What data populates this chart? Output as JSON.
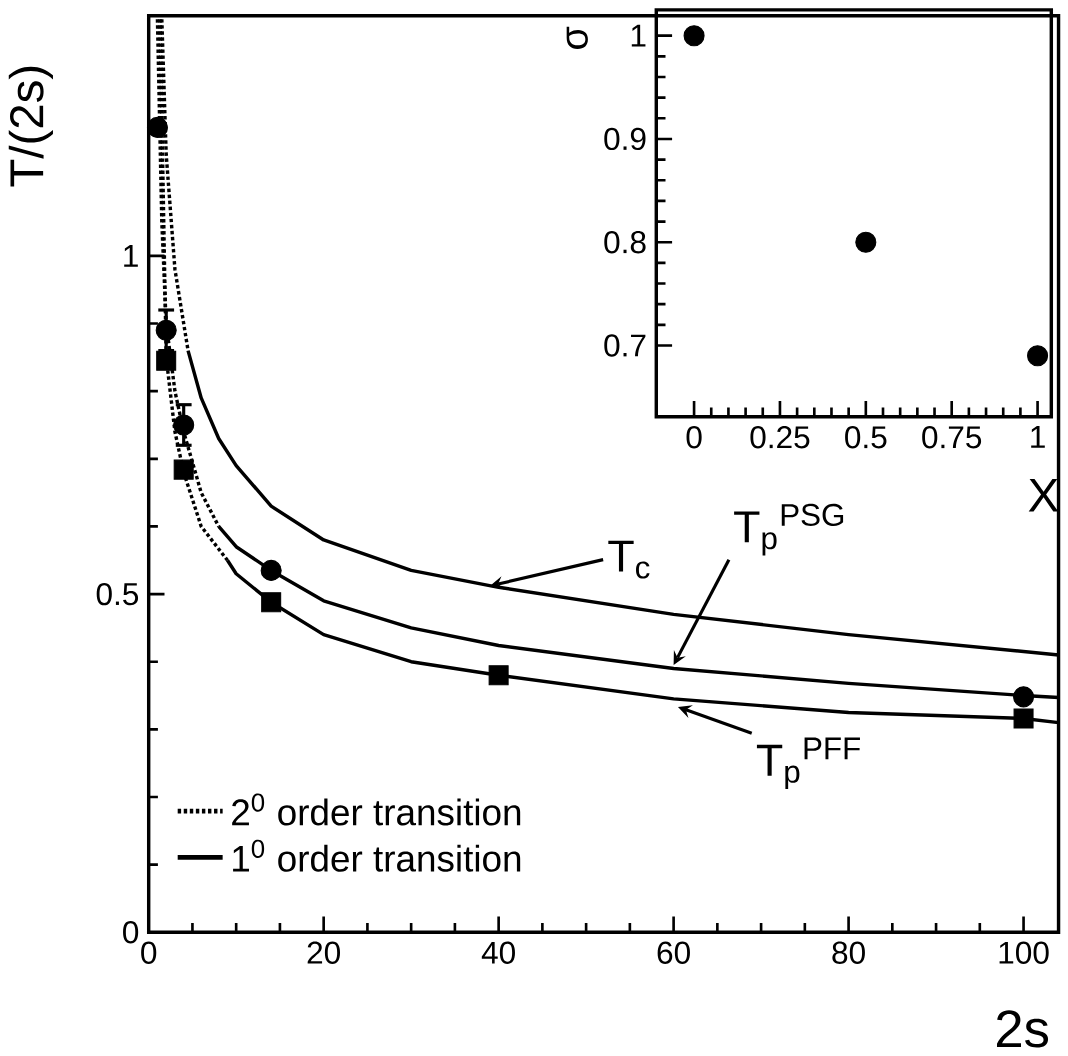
{
  "chart_data": [
    {
      "type": "line",
      "xlabel": "2s",
      "ylabel": "T/(2s)",
      "xlim": [
        0,
        104
      ],
      "ylim": [
        0,
        1.355
      ],
      "xticks": [
        0,
        20,
        40,
        60,
        80,
        100
      ],
      "yticks": [
        0,
        0.5,
        1
      ],
      "legend": "bottom left",
      "series": [
        {
          "name": "2$^{0}$ order transition",
          "type": "line",
          "line_style": "dotted",
          "color": "#000000",
          "x": [
            1.5,
            2,
            3,
            4.5
          ],
          "values": [
            1.35,
            1.15,
            0.98,
            0.86
          ]
        },
        {
          "name": "1$^{0}$ order transition",
          "type": "line",
          "line_style": "solid",
          "color": "#000000",
          "x": [
            4.5,
            6,
            8,
            10,
            14,
            20,
            30,
            40,
            60,
            80,
            104
          ],
          "values": [
            0.86,
            0.79,
            0.73,
            0.69,
            0.63,
            0.58,
            0.535,
            0.51,
            0.47,
            0.44,
            0.41
          ]
        },
        {
          "type": "line",
          "line_style": "dotted",
          "color": "#000000",
          "x": [
            1,
            1.5,
            2,
            3,
            4,
            6,
            8
          ],
          "values": [
            1.35,
            1.05,
            0.9,
            0.8,
            0.74,
            0.65,
            0.6
          ]
        },
        {
          "type": "line",
          "line_style": "solid",
          "color": "#000000",
          "x": [
            8,
            10,
            14,
            20,
            30,
            40,
            60,
            80,
            100,
            104
          ],
          "values": [
            0.6,
            0.57,
            0.535,
            0.49,
            0.45,
            0.424,
            0.39,
            0.368,
            0.35,
            0.347
          ]
        },
        {
          "type": "line",
          "line_style": "dotted",
          "color": "#000000",
          "x": [
            1.3,
            2,
            3,
            4,
            6,
            9
          ],
          "values": [
            1.35,
            0.85,
            0.74,
            0.68,
            0.6,
            0.55
          ]
        },
        {
          "type": "line",
          "line_style": "solid",
          "color": "#000000",
          "x": [
            9,
            10,
            14,
            20,
            30,
            40,
            60,
            80,
            100,
            104
          ],
          "values": [
            0.55,
            0.53,
            0.488,
            0.44,
            0.4,
            0.38,
            0.345,
            0.325,
            0.316,
            0.31
          ]
        },
        {
          "type": "scatter",
          "marker": "circle",
          "color": "#000000",
          "x": [
            1,
            2,
            4,
            14,
            100
          ],
          "values": [
            1.19,
            0.89,
            0.75,
            0.535,
            0.348
          ],
          "errors": [
            null,
            0.03,
            0.03,
            null,
            null
          ]
        },
        {
          "type": "scatter",
          "marker": "square",
          "color": "#000000",
          "x": [
            2,
            4,
            14,
            40,
            100
          ],
          "values": [
            0.845,
            0.684,
            0.488,
            0.38,
            0.316
          ]
        }
      ],
      "annotations": [
        {
          "text": "T$_{c}$",
          "x": 39,
          "y": 0.512
        },
        {
          "text": "T$_{p}$$^{PSG}$",
          "x": 60,
          "y": 0.395
        },
        {
          "text": "T$_{p}$$^{PFF}$",
          "x": 60.5,
          "y": 0.333
        }
      ]
    },
    {
      "type": "scatter",
      "xlabel": "X",
      "ylabel": "σ",
      "xlim": [
        -0.11,
        1.04
      ],
      "ylim": [
        0.631,
        1.025
      ],
      "xticks": [
        0,
        0.25,
        0.5,
        0.75,
        1
      ],
      "yticks": [
        0.7,
        0.8,
        0.9,
        1
      ],
      "marker": "circle",
      "series": [
        {
          "color": "#000000",
          "x": [
            0,
            0.5,
            1
          ],
          "values": [
            1,
            0.8,
            0.69
          ]
        }
      ]
    }
  ]
}
